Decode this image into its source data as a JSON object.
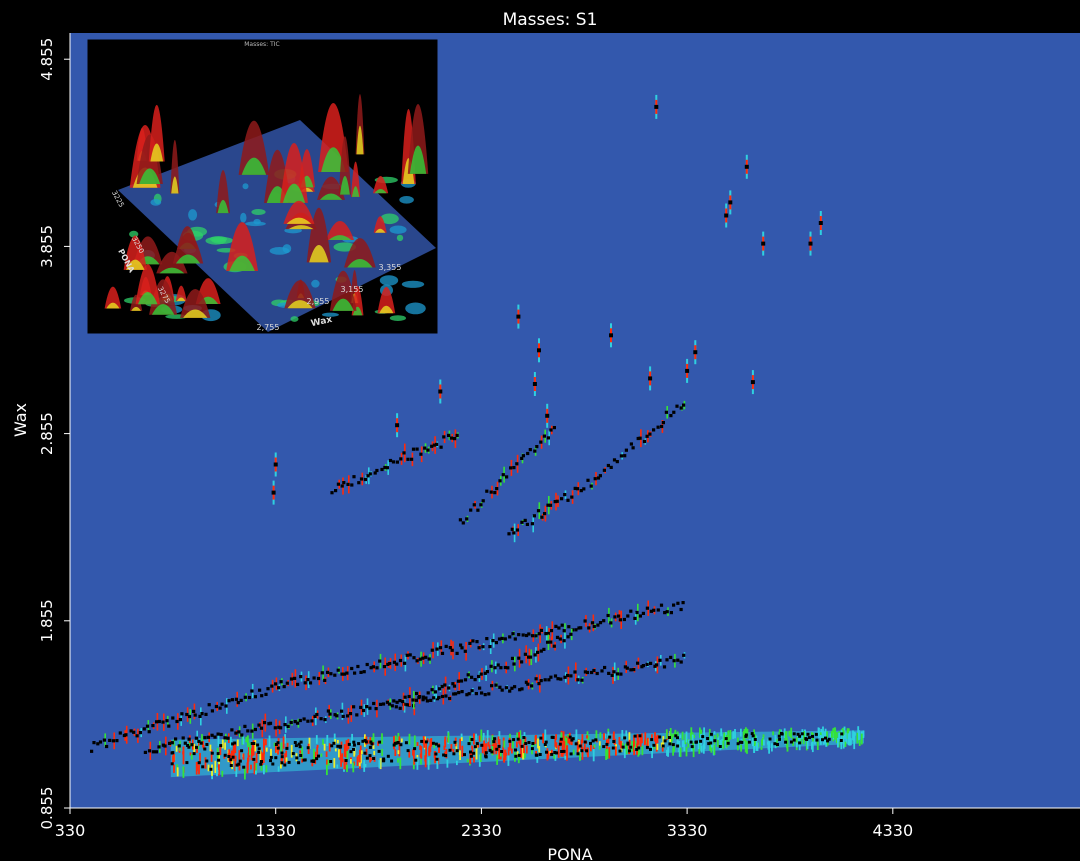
{
  "chart_data": {
    "type": "heatmap",
    "title": "Masses: S1",
    "xlabel": "PONA",
    "ylabel": "Wax",
    "xlim": [
      330,
      5240
    ],
    "ylim": [
      0.855,
      4.995
    ],
    "x_ticks": [
      "330",
      "1330",
      "2330",
      "3330",
      "4330"
    ],
    "y_ticks": [
      "0.855",
      "1.855",
      "2.855",
      "3.855",
      "4.855"
    ],
    "background_color": "#3358ad",
    "colors": [
      "#1e5fff",
      "#2fd0e0",
      "#35e23a",
      "#f0ef2a",
      "#ff2a0a",
      "#000000"
    ],
    "dense_band": {
      "x_start": 820,
      "x_end": 4190,
      "y_low_start": 1.02,
      "y_low_end": 1.2,
      "y_high_start": 1.22,
      "y_high_end": 1.27
    },
    "series_lines": [
      {
        "x": [
          430,
          1330,
          2330,
          3330
        ],
        "y": [
          1.18,
          1.52,
          1.74,
          1.94
        ]
      },
      {
        "x": [
          700,
          1330,
          2330,
          3330
        ],
        "y": [
          1.17,
          1.35,
          1.5,
          1.65
        ]
      },
      {
        "x": [
          1900,
          2330,
          2780
        ],
        "y": [
          1.4,
          1.57,
          1.78
        ]
      },
      {
        "x": [
          2460,
          2900,
          3330
        ],
        "y": [
          2.32,
          2.62,
          3.04
        ]
      },
      {
        "x": [
          1600,
          1900,
          2230
        ],
        "y": [
          2.55,
          2.71,
          2.85
        ]
      },
      {
        "x": [
          2230,
          2480,
          2700
        ],
        "y": [
          2.38,
          2.64,
          2.9
        ]
      }
    ],
    "peaks": [
      {
        "x": 3180,
        "y": 4.6
      },
      {
        "x": 3620,
        "y": 4.28
      },
      {
        "x": 3540,
        "y": 4.09
      },
      {
        "x": 3520,
        "y": 4.02
      },
      {
        "x": 3980,
        "y": 3.98
      },
      {
        "x": 3930,
        "y": 3.87
      },
      {
        "x": 3700,
        "y": 3.87
      },
      {
        "x": 2510,
        "y": 3.48
      },
      {
        "x": 2960,
        "y": 3.38
      },
      {
        "x": 2610,
        "y": 3.3
      },
      {
        "x": 3370,
        "y": 3.29
      },
      {
        "x": 3330,
        "y": 3.19
      },
      {
        "x": 2590,
        "y": 3.12
      },
      {
        "x": 3150,
        "y": 3.15
      },
      {
        "x": 3650,
        "y": 3.13
      },
      {
        "x": 2130,
        "y": 3.08
      },
      {
        "x": 1920,
        "y": 2.9
      },
      {
        "x": 1330,
        "y": 2.69
      },
      {
        "x": 1320,
        "y": 2.54
      },
      {
        "x": 2650,
        "y": 2.95
      }
    ],
    "inset": {
      "type": "surface-3d",
      "title": "Masses: TIC",
      "xlabel": "Wax",
      "ylabel": "PONA",
      "x_ticks": [
        "2,755",
        "2,955",
        "3,155",
        "3,355"
      ],
      "y_ticks": [
        "3275",
        "3250",
        "3225"
      ]
    }
  }
}
